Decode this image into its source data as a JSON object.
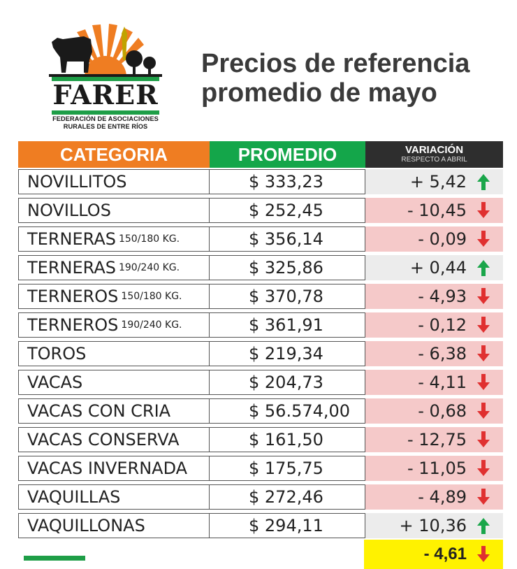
{
  "logo": {
    "name": "FARER",
    "line1": "FEDERACIÓN DE ASOCIACIONES",
    "line2": "RURALES DE ENTRE RÍOS"
  },
  "title": {
    "line1": "Precios de referencia",
    "line2": "promedio de mayo"
  },
  "headers": {
    "categoria": "CATEGORIA",
    "promedio": "PROMEDIO",
    "variacion": "VARIACIÓN",
    "variacion_sub": "RESPECTO A ABRIL"
  },
  "colors": {
    "orange": "#ef7d22",
    "green": "#14a64a",
    "dark": "#2e2e2e",
    "down_bg": "#f5c9c9",
    "up_bg": "#ececec",
    "yellow": "#fff200",
    "arrow_up": "#1aa64a",
    "arrow_down": "#e03030"
  },
  "rows": [
    {
      "cat": "NOVILLITOS",
      "sub": "",
      "prom": "$ 333,23",
      "var": "+ 5,42",
      "dir": "up"
    },
    {
      "cat": "NOVILLOS",
      "sub": "",
      "prom": "$ 252,45",
      "var": "- 10,45",
      "dir": "down"
    },
    {
      "cat": "TERNERAS",
      "sub": "150/180 KG.",
      "prom": "$ 356,14",
      "var": "- 0,09",
      "dir": "down"
    },
    {
      "cat": "TERNERAS",
      "sub": "190/240 KG.",
      "prom": "$ 325,86",
      "var": "+ 0,44",
      "dir": "up"
    },
    {
      "cat": "TERNEROS",
      "sub": "150/180 KG.",
      "prom": "$ 370,78",
      "var": "- 4,93",
      "dir": "down"
    },
    {
      "cat": "TERNEROS",
      "sub": "190/240 KG.",
      "prom": "$ 361,91",
      "var": "- 0,12",
      "dir": "down"
    },
    {
      "cat": "TOROS",
      "sub": "",
      "prom": "$ 219,34",
      "var": "- 6,38",
      "dir": "down"
    },
    {
      "cat": "VACAS",
      "sub": "",
      "prom": "$ 204,73",
      "var": "- 4,11",
      "dir": "down"
    },
    {
      "cat": "VACAS CON CRIA",
      "sub": "",
      "prom": "$ 56.574,00",
      "var": "- 0,68",
      "dir": "down"
    },
    {
      "cat": "VACAS CONSERVA",
      "sub": "",
      "prom": "$ 161,50",
      "var": "- 12,75",
      "dir": "down"
    },
    {
      "cat": "VACAS INVERNADA",
      "sub": "",
      "prom": "$ 175,75",
      "var": "- 11,05",
      "dir": "down"
    },
    {
      "cat": "VAQUILLAS",
      "sub": "",
      "prom": "$ 272,46",
      "var": "- 4,89",
      "dir": "down"
    },
    {
      "cat": "VAQUILLONAS",
      "sub": "",
      "prom": "$ 294,11",
      "var": "+ 10,36",
      "dir": "up"
    }
  ],
  "total": {
    "var": "- 4,61",
    "dir": "down"
  }
}
